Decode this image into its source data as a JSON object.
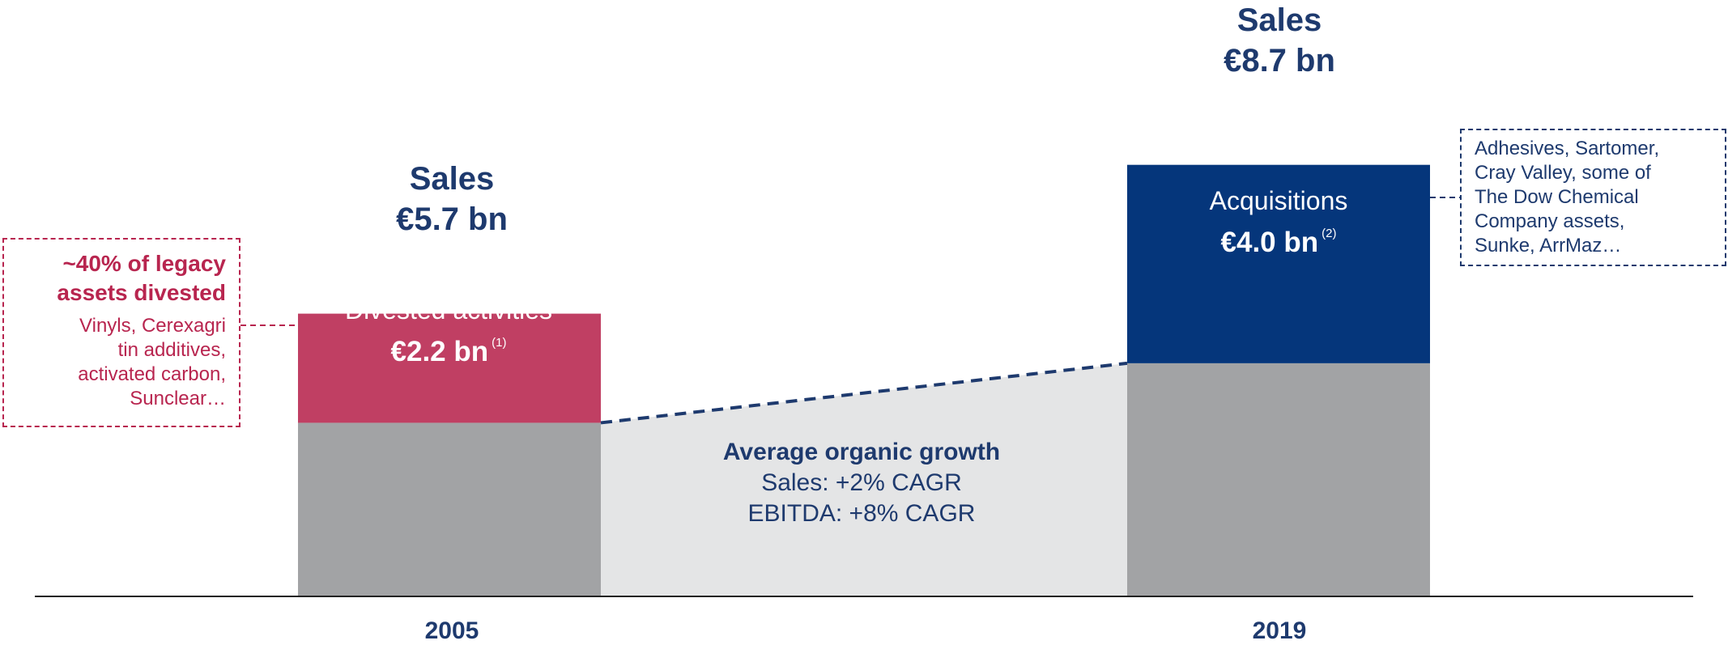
{
  "chart_data": {
    "type": "bar",
    "subtype": "stacked-bar-bridge",
    "categories": [
      "2005",
      "2019"
    ],
    "units": "€ bn",
    "totals": [
      {
        "category": "2005",
        "heading": "Sales",
        "value_label": "€5.7 bn",
        "value": 5.7
      },
      {
        "category": "2019",
        "heading": "Sales",
        "value_label": "€8.7 bn",
        "value": 8.7
      }
    ],
    "series": [
      {
        "name": "",
        "values": [
          3.5,
          4.7
        ],
        "color": "#a2a3a5"
      },
      {
        "name": "Divested activities",
        "values": [
          2.2,
          0
        ],
        "value_label": "€2.2 bn",
        "footnote": "(1)",
        "color": "#c03f63"
      },
      {
        "name": "Acquisitions",
        "values": [
          0,
          4.0
        ],
        "value_label": "€4.0 bn",
        "footnote": "(2)",
        "color": "#05367b"
      }
    ],
    "bridge": {
      "from": "2005",
      "to": "2019",
      "title": "Average organic growth",
      "lines": [
        "Sales: +2% CAGR",
        "EBITDA: +8% CAGR"
      ],
      "fill_color": "#e4e5e6",
      "line_color": "#1e3a6e"
    },
    "ylim": [
      0,
      9.5
    ],
    "grid": false,
    "legend": "none"
  },
  "callouts": {
    "left": {
      "heading_lines": [
        "~40% of legacy",
        "assets divested"
      ],
      "body_lines": [
        "Vinyls, Cerexagri",
        "tin additives,",
        "activated carbon,",
        "Sunclear…"
      ],
      "color": "#b8254f"
    },
    "right": {
      "body_lines": [
        "Adhesives, Sartomer,",
        "Cray Valley, some of",
        "The Dow Chemical",
        "Company assets,",
        "Sunke, ArrMaz…"
      ],
      "color": "#1e3a6e"
    }
  },
  "colors": {
    "navy_text": "#1e3a6e",
    "crimson_text": "#b8254f",
    "axis": "#222222"
  }
}
